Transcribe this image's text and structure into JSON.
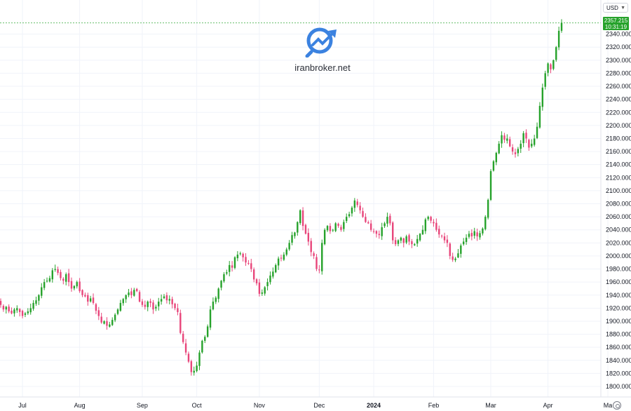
{
  "currency_selector": {
    "label": "USD"
  },
  "last_price": {
    "value": "2357.215",
    "time": "10:31:19"
  },
  "watermark": {
    "text": "iranbroker.net"
  },
  "colors": {
    "up": "#26a22b",
    "down": "#e8457a",
    "grid": "#f0f3fa",
    "price_line": "#26a22b"
  },
  "chart_data": {
    "type": "candlestick",
    "interval": "1D",
    "ylim": [
      1780,
      2380
    ],
    "y_ticks": [
      "1780.000",
      "1800.000",
      "1820.000",
      "1840.000",
      "1860.000",
      "1880.000",
      "1900.000",
      "1920.000",
      "1940.000",
      "1960.000",
      "1980.000",
      "2000.000",
      "2020.000",
      "2040.000",
      "2060.000",
      "2080.000",
      "2100.000",
      "2120.000",
      "2140.000",
      "2160.000",
      "2180.000",
      "2200.000",
      "2220.000",
      "2240.000",
      "2260.000",
      "2280.000",
      "2300.000",
      "2320.000",
      "2340.000"
    ],
    "x_labels": [
      {
        "label": "Jul",
        "index": 8
      },
      {
        "label": "Aug",
        "index": 29
      },
      {
        "label": "Sep",
        "index": 52
      },
      {
        "label": "Oct",
        "index": 72
      },
      {
        "label": "Nov",
        "index": 95
      },
      {
        "label": "Dec",
        "index": 117
      },
      {
        "label": "2024",
        "index": 137,
        "bold": true
      },
      {
        "label": "Feb",
        "index": 159
      },
      {
        "label": "Mar",
        "index": 180
      },
      {
        "label": "Apr",
        "index": 201
      },
      {
        "label": "Ma",
        "index": 223
      }
    ],
    "closes": [
      1925,
      1918,
      1922,
      1915,
      1912,
      1918,
      1920,
      1914,
      1908,
      1912,
      1915,
      1920,
      1928,
      1932,
      1940,
      1952,
      1960,
      1962,
      1966,
      1978,
      1980,
      1974,
      1966,
      1962,
      1972,
      1960,
      1950,
      1954,
      1960,
      1946,
      1940,
      1938,
      1930,
      1935,
      1928,
      1916,
      1908,
      1898,
      1900,
      1893,
      1895,
      1902,
      1910,
      1918,
      1928,
      1934,
      1940,
      1944,
      1940,
      1948,
      1946,
      1930,
      1925,
      1922,
      1930,
      1928,
      1918,
      1922,
      1930,
      1934,
      1938,
      1932,
      1934,
      1926,
      1920,
      1914,
      1882,
      1868,
      1852,
      1838,
      1822,
      1824,
      1832,
      1852,
      1870,
      1876,
      1892,
      1918,
      1930,
      1936,
      1950,
      1962,
      1972,
      1975,
      1986,
      1982,
      1998,
      2002,
      2004,
      1998,
      1990,
      1988,
      1980,
      1964,
      1958,
      1942,
      1944,
      1952,
      1960,
      1970,
      1976,
      1986,
      1996,
      1996,
      2002,
      2010,
      2020,
      2032,
      2036,
      2052,
      2070,
      2046,
      2034,
      2022,
      2006,
      2000,
      1980,
      1978,
      2020,
      2040,
      2046,
      2038,
      2040,
      2050,
      2046,
      2040,
      2052,
      2060,
      2064,
      2074,
      2085,
      2078,
      2070,
      2060,
      2052,
      2050,
      2040,
      2038,
      2034,
      2032,
      2044,
      2050,
      2060,
      2050,
      2024,
      2018,
      2024,
      2028,
      2020,
      2030,
      2022,
      2018,
      2018,
      2026,
      2034,
      2040,
      2056,
      2060,
      2054,
      2050,
      2040,
      2033,
      2030,
      2024,
      2020,
      2000,
      1994,
      1996,
      2004,
      2016,
      2022,
      2028,
      2034,
      2030,
      2038,
      2030,
      2035,
      2042,
      2060,
      2086,
      2130,
      2145,
      2158,
      2172,
      2185,
      2178,
      2180,
      2168,
      2160,
      2156,
      2164,
      2172,
      2188,
      2180,
      2166,
      2172,
      2180,
      2198,
      2230,
      2258,
      2280,
      2295,
      2286,
      2300,
      2320,
      2345,
      2357.215
    ]
  }
}
